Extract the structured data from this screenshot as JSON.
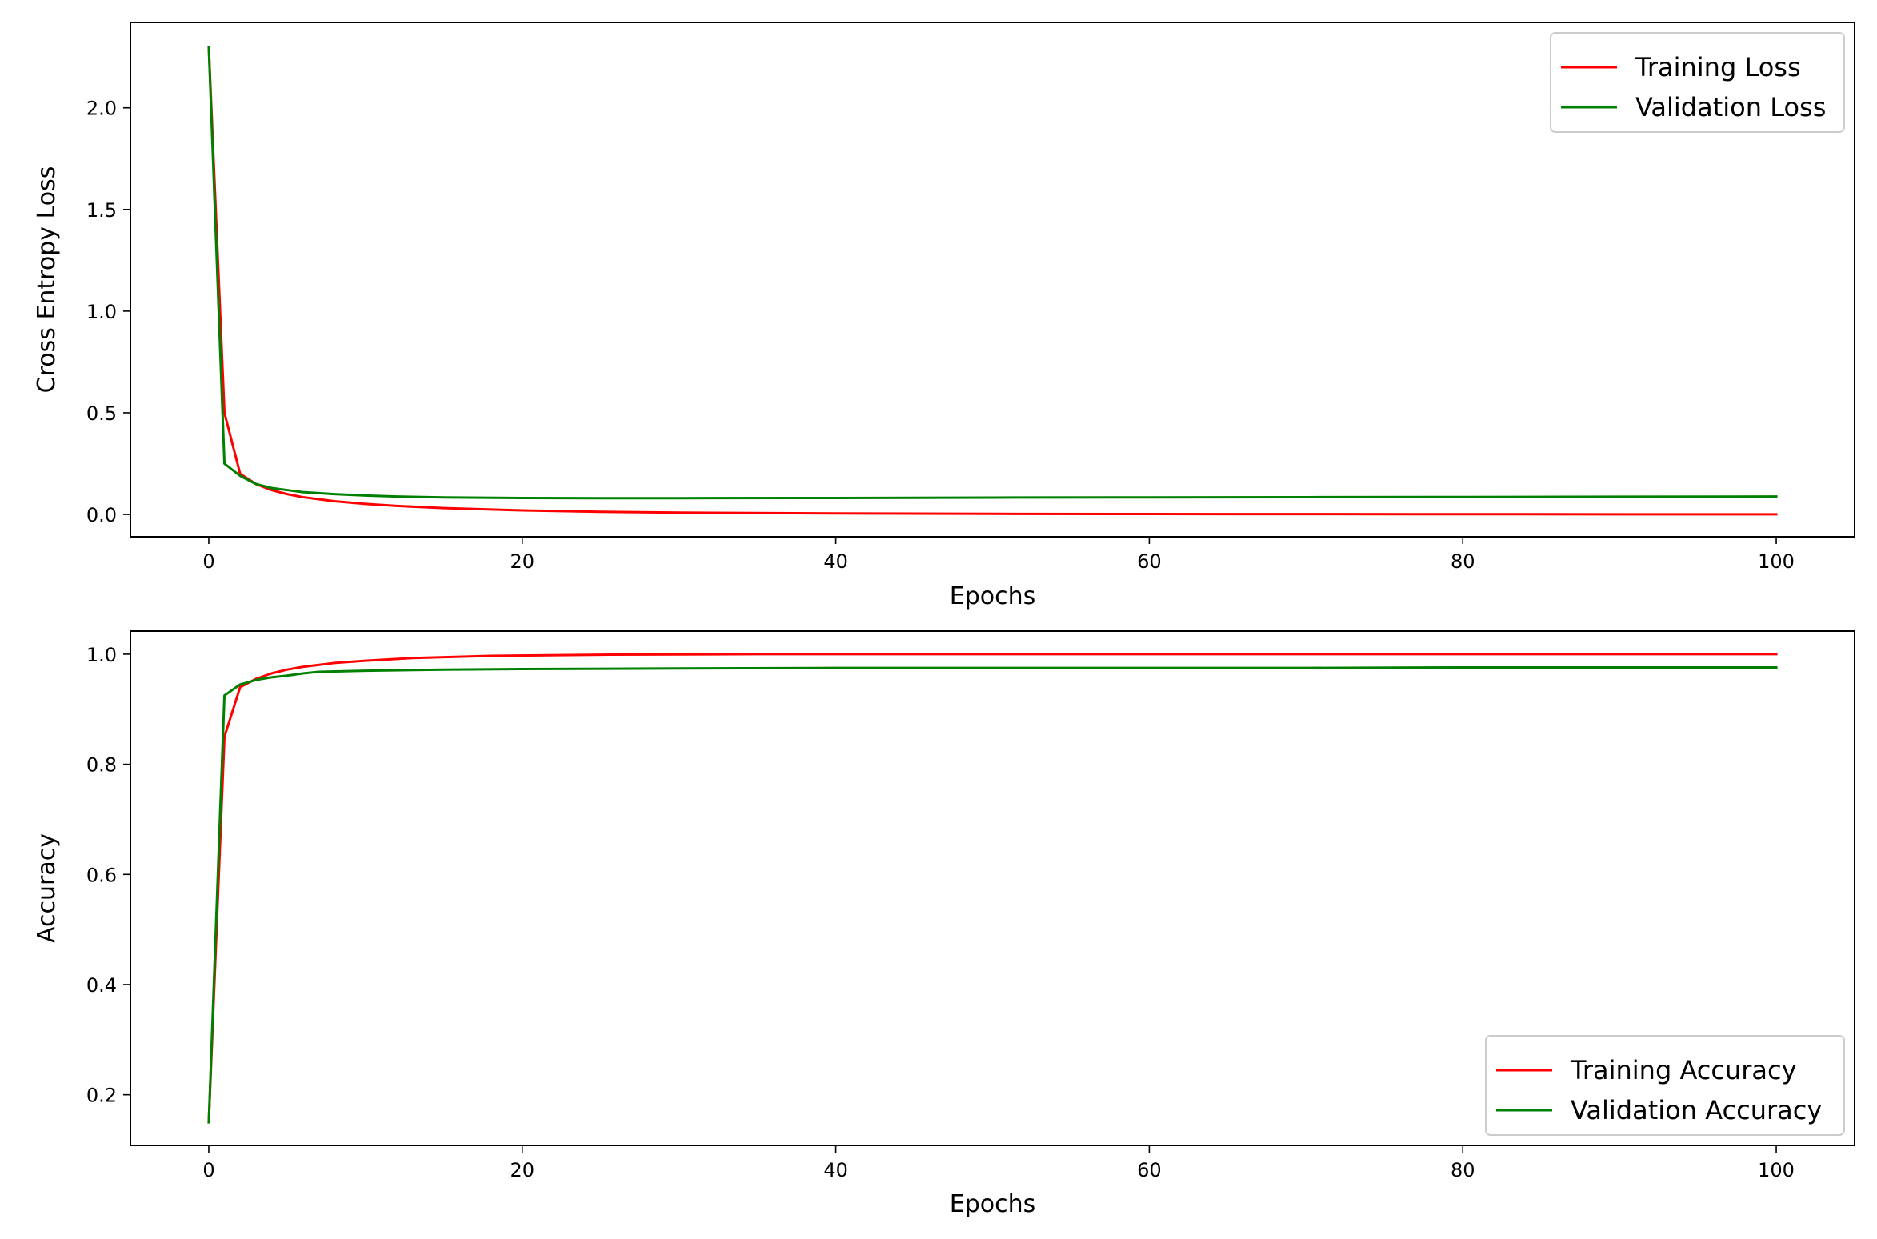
{
  "chart_data": [
    {
      "type": "line",
      "title": "",
      "xlabel": "Epochs",
      "ylabel": "Cross Entropy Loss",
      "xlim": [
        -5,
        105
      ],
      "ylim": [
        -0.11,
        2.42
      ],
      "xticks": [
        0,
        20,
        40,
        60,
        80,
        100
      ],
      "yticks": [
        0.0,
        0.5,
        1.0,
        1.5,
        2.0
      ],
      "ytick_decimals": 1,
      "grid": false,
      "legend_position": "top-right",
      "series": [
        {
          "name": "Training Loss",
          "color": "#ff0000",
          "points": [
            [
              0,
              2.3
            ],
            [
              1,
              0.5
            ],
            [
              2,
              0.2
            ],
            [
              3,
              0.15
            ],
            [
              4,
              0.12
            ],
            [
              5,
              0.1
            ],
            [
              6,
              0.085
            ],
            [
              8,
              0.065
            ],
            [
              10,
              0.052
            ],
            [
              12,
              0.042
            ],
            [
              15,
              0.031
            ],
            [
              20,
              0.02
            ],
            [
              25,
              0.013
            ],
            [
              30,
              0.009
            ],
            [
              40,
              0.005
            ],
            [
              50,
              0.003
            ],
            [
              60,
              0.002
            ],
            [
              70,
              0.0015
            ],
            [
              80,
              0.001
            ],
            [
              90,
              0.0008
            ],
            [
              100,
              0.0005
            ]
          ]
        },
        {
          "name": "Validation Loss",
          "color": "#008000",
          "points": [
            [
              0,
              2.3
            ],
            [
              1,
              0.25
            ],
            [
              2,
              0.19
            ],
            [
              3,
              0.15
            ],
            [
              4,
              0.13
            ],
            [
              5,
              0.12
            ],
            [
              6,
              0.11
            ],
            [
              8,
              0.1
            ],
            [
              10,
              0.093
            ],
            [
              12,
              0.088
            ],
            [
              15,
              0.084
            ],
            [
              20,
              0.081
            ],
            [
              25,
              0.08
            ],
            [
              30,
              0.08
            ],
            [
              40,
              0.081
            ],
            [
              50,
              0.083
            ],
            [
              60,
              0.084
            ],
            [
              70,
              0.085
            ],
            [
              80,
              0.086
            ],
            [
              90,
              0.087
            ],
            [
              100,
              0.088
            ]
          ]
        }
      ]
    },
    {
      "type": "line",
      "title": "",
      "xlabel": "Epochs",
      "ylabel": "Accuracy",
      "xlim": [
        -5,
        105
      ],
      "ylim": [
        0.108,
        1.042
      ],
      "xticks": [
        0,
        20,
        40,
        60,
        80,
        100
      ],
      "yticks": [
        0.2,
        0.4,
        0.6,
        0.8,
        1.0
      ],
      "ytick_decimals": 1,
      "grid": false,
      "legend_position": "bottom-right",
      "series": [
        {
          "name": "Training Accuracy",
          "color": "#ff0000",
          "points": [
            [
              0,
              0.15
            ],
            [
              1,
              0.85
            ],
            [
              2,
              0.94
            ],
            [
              3,
              0.955
            ],
            [
              4,
              0.965
            ],
            [
              5,
              0.972
            ],
            [
              6,
              0.977
            ],
            [
              8,
              0.984
            ],
            [
              10,
              0.988
            ],
            [
              13,
              0.993
            ],
            [
              18,
              0.997
            ],
            [
              25,
              0.999
            ],
            [
              35,
              1.0
            ],
            [
              50,
              1.0
            ],
            [
              70,
              1.0
            ],
            [
              90,
              1.0
            ],
            [
              100,
              1.0
            ]
          ]
        },
        {
          "name": "Validation Accuracy",
          "color": "#008000",
          "points": [
            [
              0,
              0.15
            ],
            [
              1,
              0.925
            ],
            [
              2,
              0.945
            ],
            [
              3,
              0.953
            ],
            [
              4,
              0.958
            ],
            [
              5,
              0.961
            ],
            [
              6,
              0.965
            ],
            [
              7,
              0.968
            ],
            [
              10,
              0.97
            ],
            [
              15,
              0.972
            ],
            [
              20,
              0.973
            ],
            [
              30,
              0.974
            ],
            [
              40,
              0.975
            ],
            [
              50,
              0.975
            ],
            [
              60,
              0.975
            ],
            [
              70,
              0.975
            ],
            [
              80,
              0.976
            ],
            [
              90,
              0.976
            ],
            [
              100,
              0.976
            ]
          ]
        }
      ]
    }
  ]
}
